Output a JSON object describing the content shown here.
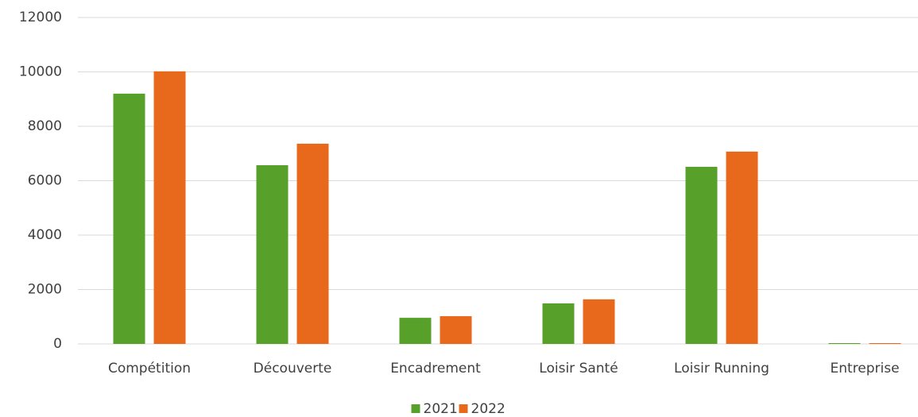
{
  "chart_data": {
    "type": "bar",
    "categories": [
      "Compétition",
      "Découverte",
      "Encadrement",
      "Loisir Santé",
      "Loisir Running",
      "Entreprise"
    ],
    "series": [
      {
        "name": "2021",
        "color": "#57a12a",
        "values": [
          9200,
          6570,
          960,
          1490,
          6510,
          30
        ]
      },
      {
        "name": "2022",
        "color": "#e8691c",
        "values": [
          10020,
          7360,
          1020,
          1640,
          7070,
          30
        ]
      }
    ],
    "ylim": [
      0,
      12000
    ],
    "yticks": [
      0,
      2000,
      4000,
      6000,
      8000,
      10000,
      12000
    ],
    "grid": true,
    "legend": "bottom"
  }
}
